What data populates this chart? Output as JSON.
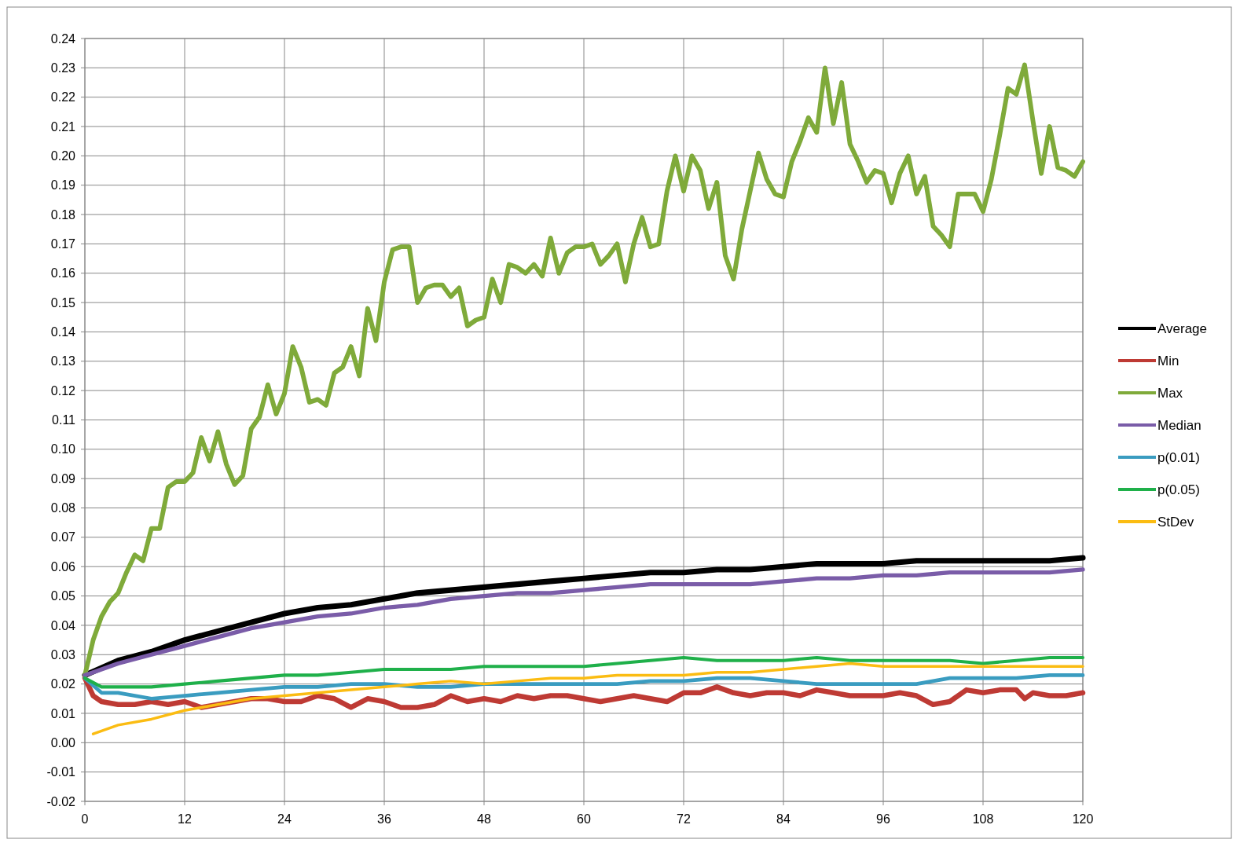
{
  "chart_data": {
    "type": "line",
    "legend": "right",
    "grid": true,
    "xlim": [
      0,
      120
    ],
    "xticks": [
      0,
      12,
      24,
      36,
      48,
      60,
      72,
      84,
      96,
      108,
      120
    ],
    "ylim": [
      -0.02,
      0.24
    ],
    "yticks": [
      -0.02,
      -0.01,
      {
        "value": 0,
        "label": "0.00"
      },
      0.01,
      0.02,
      0.03,
      0.04,
      0.05,
      0.06,
      0.07,
      0.08,
      0.09,
      {
        "value": 0.1,
        "label": "0.10"
      },
      0.11,
      0.12,
      0.13,
      0.14,
      0.15,
      0.16,
      0.17,
      0.18,
      0.19,
      {
        "value": 0.2,
        "label": "0.20"
      },
      0.21,
      0.22,
      0.23,
      0.24
    ],
    "series": [
      {
        "name": "Average",
        "color": "#000000",
        "x": [
          0,
          4,
          8,
          12,
          16,
          20,
          24,
          28,
          32,
          36,
          40,
          44,
          48,
          52,
          56,
          60,
          64,
          68,
          72,
          76,
          80,
          84,
          88,
          92,
          96,
          100,
          104,
          108,
          112,
          116,
          120
        ],
        "values": [
          0.023,
          0.028,
          0.031,
          0.035,
          0.038,
          0.041,
          0.044,
          0.046,
          0.047,
          0.049,
          0.051,
          0.052,
          0.053,
          0.054,
          0.055,
          0.056,
          0.057,
          0.058,
          0.058,
          0.059,
          0.059,
          0.06,
          0.061,
          0.061,
          0.061,
          0.062,
          0.062,
          0.062,
          0.062,
          0.062,
          0.063
        ]
      },
      {
        "name": "Min",
        "color": "#be3a34",
        "x": [
          0,
          1,
          2,
          4,
          6,
          8,
          10,
          12,
          14,
          16,
          18,
          20,
          22,
          24,
          26,
          28,
          30,
          32,
          34,
          36,
          38,
          40,
          42,
          44,
          46,
          48,
          50,
          52,
          54,
          56,
          58,
          60,
          62,
          64,
          66,
          68,
          70,
          72,
          74,
          76,
          78,
          80,
          82,
          84,
          86,
          88,
          90,
          92,
          94,
          96,
          98,
          100,
          102,
          104,
          106,
          108,
          110,
          112,
          113,
          114,
          116,
          118,
          120
        ],
        "values": [
          0.022,
          0.016,
          0.014,
          0.013,
          0.013,
          0.014,
          0.013,
          0.014,
          0.012,
          0.013,
          0.014,
          0.015,
          0.015,
          0.014,
          0.014,
          0.016,
          0.015,
          0.012,
          0.015,
          0.014,
          0.012,
          0.012,
          0.013,
          0.016,
          0.014,
          0.015,
          0.014,
          0.016,
          0.015,
          0.016,
          0.016,
          0.015,
          0.014,
          0.015,
          0.016,
          0.015,
          0.014,
          0.017,
          0.017,
          0.019,
          0.017,
          0.016,
          0.017,
          0.017,
          0.016,
          0.018,
          0.017,
          0.016,
          0.016,
          0.016,
          0.017,
          0.016,
          0.013,
          0.014,
          0.018,
          0.017,
          0.018,
          0.018,
          0.015,
          0.017,
          0.016,
          0.016,
          0.017
        ]
      },
      {
        "name": "Max",
        "color": "#7faa3a",
        "x": [
          0,
          1,
          2,
          3,
          4,
          5,
          6,
          7,
          8,
          9,
          10,
          11,
          12,
          13,
          14,
          15,
          16,
          17,
          18,
          19,
          20,
          21,
          22,
          23,
          24,
          25,
          26,
          27,
          28,
          29,
          30,
          31,
          32,
          33,
          34,
          35,
          36,
          37,
          38,
          39,
          40,
          41,
          42,
          43,
          44,
          45,
          46,
          47,
          48,
          49,
          50,
          51,
          52,
          53,
          54,
          55,
          56,
          57,
          58,
          59,
          60,
          61,
          62,
          63,
          64,
          65,
          66,
          67,
          68,
          69,
          70,
          71,
          72,
          73,
          74,
          75,
          76,
          77,
          78,
          79,
          80,
          81,
          82,
          83,
          84,
          85,
          86,
          87,
          88,
          89,
          90,
          91,
          92,
          93,
          94,
          95,
          96,
          97,
          98,
          99,
          100,
          101,
          102,
          103,
          104,
          105,
          106,
          107,
          108,
          109,
          110,
          111,
          112,
          113,
          114,
          115,
          116,
          117,
          118,
          119,
          120
        ],
        "values": [
          0.023,
          0.035,
          0.043,
          0.048,
          0.051,
          0.058,
          0.064,
          0.062,
          0.073,
          0.073,
          0.087,
          0.089,
          0.089,
          0.092,
          0.104,
          0.096,
          0.106,
          0.095,
          0.088,
          0.091,
          0.107,
          0.111,
          0.122,
          0.112,
          0.119,
          0.135,
          0.128,
          0.116,
          0.117,
          0.115,
          0.126,
          0.128,
          0.135,
          0.125,
          0.148,
          0.137,
          0.157,
          0.168,
          0.169,
          0.169,
          0.15,
          0.155,
          0.156,
          0.156,
          0.152,
          0.155,
          0.142,
          0.144,
          0.145,
          0.158,
          0.15,
          0.163,
          0.162,
          0.16,
          0.163,
          0.159,
          0.172,
          0.16,
          0.167,
          0.169,
          0.169,
          0.17,
          0.163,
          0.166,
          0.17,
          0.157,
          0.17,
          0.179,
          0.169,
          0.17,
          0.188,
          0.2,
          0.188,
          0.2,
          0.195,
          0.182,
          0.191,
          0.166,
          0.158,
          0.175,
          0.188,
          0.201,
          0.192,
          0.187,
          0.186,
          0.198,
          0.205,
          0.213,
          0.208,
          0.23,
          0.211,
          0.225,
          0.204,
          0.198,
          0.191,
          0.195,
          0.194,
          0.184,
          0.194,
          0.2,
          0.187,
          0.193,
          0.176,
          0.173,
          0.169,
          0.187,
          0.187,
          0.187,
          0.181,
          0.192,
          0.207,
          0.223,
          0.221,
          0.231,
          0.212,
          0.194,
          0.21,
          0.196,
          0.195,
          0.193,
          0.198
        ]
      },
      {
        "name": "Median",
        "color": "#7a5ca8",
        "x": [
          0,
          4,
          8,
          12,
          16,
          20,
          24,
          28,
          32,
          36,
          40,
          44,
          48,
          52,
          56,
          60,
          64,
          68,
          72,
          76,
          80,
          84,
          88,
          92,
          96,
          100,
          104,
          108,
          112,
          116,
          120
        ],
        "values": [
          0.023,
          0.027,
          0.03,
          0.033,
          0.036,
          0.039,
          0.041,
          0.043,
          0.044,
          0.046,
          0.047,
          0.049,
          0.05,
          0.051,
          0.051,
          0.052,
          0.053,
          0.054,
          0.054,
          0.054,
          0.054,
          0.055,
          0.056,
          0.056,
          0.057,
          0.057,
          0.058,
          0.058,
          0.058,
          0.058,
          0.059
        ]
      },
      {
        "name": "p(0.01)",
        "color": "#3a9cc0",
        "x": [
          0,
          2,
          4,
          8,
          12,
          16,
          20,
          24,
          28,
          32,
          36,
          40,
          44,
          48,
          52,
          56,
          60,
          64,
          68,
          72,
          76,
          80,
          84,
          88,
          92,
          96,
          100,
          104,
          108,
          112,
          116,
          120
        ],
        "values": [
          0.022,
          0.017,
          0.017,
          0.015,
          0.016,
          0.017,
          0.018,
          0.019,
          0.019,
          0.02,
          0.02,
          0.019,
          0.019,
          0.02,
          0.02,
          0.02,
          0.02,
          0.02,
          0.021,
          0.021,
          0.022,
          0.022,
          0.021,
          0.02,
          0.02,
          0.02,
          0.02,
          0.022,
          0.022,
          0.022,
          0.023,
          0.023
        ]
      },
      {
        "name": "p(0.05)",
        "color": "#1fb04a",
        "x": [
          0,
          2,
          4,
          8,
          12,
          16,
          20,
          24,
          28,
          32,
          36,
          40,
          44,
          48,
          52,
          56,
          60,
          64,
          68,
          72,
          76,
          80,
          84,
          88,
          92,
          96,
          100,
          104,
          108,
          112,
          116,
          120
        ],
        "values": [
          0.022,
          0.019,
          0.019,
          0.019,
          0.02,
          0.021,
          0.022,
          0.023,
          0.023,
          0.024,
          0.025,
          0.025,
          0.025,
          0.026,
          0.026,
          0.026,
          0.026,
          0.027,
          0.028,
          0.029,
          0.028,
          0.028,
          0.028,
          0.029,
          0.028,
          0.028,
          0.028,
          0.028,
          0.027,
          0.028,
          0.029,
          0.029
        ]
      },
      {
        "name": "StDev",
        "color": "#fbbc12",
        "x": [
          1,
          4,
          8,
          12,
          16,
          20,
          24,
          28,
          32,
          36,
          40,
          44,
          48,
          52,
          56,
          60,
          64,
          68,
          72,
          76,
          80,
          84,
          88,
          92,
          96,
          100,
          104,
          108,
          112,
          116,
          120
        ],
        "values": [
          0.003,
          0.006,
          0.008,
          0.011,
          0.013,
          0.015,
          0.016,
          0.017,
          0.018,
          0.019,
          0.02,
          0.021,
          0.02,
          0.021,
          0.022,
          0.022,
          0.023,
          0.023,
          0.023,
          0.024,
          0.024,
          0.025,
          0.026,
          0.027,
          0.026,
          0.026,
          0.026,
          0.026,
          0.026,
          0.026,
          0.026
        ]
      }
    ]
  }
}
